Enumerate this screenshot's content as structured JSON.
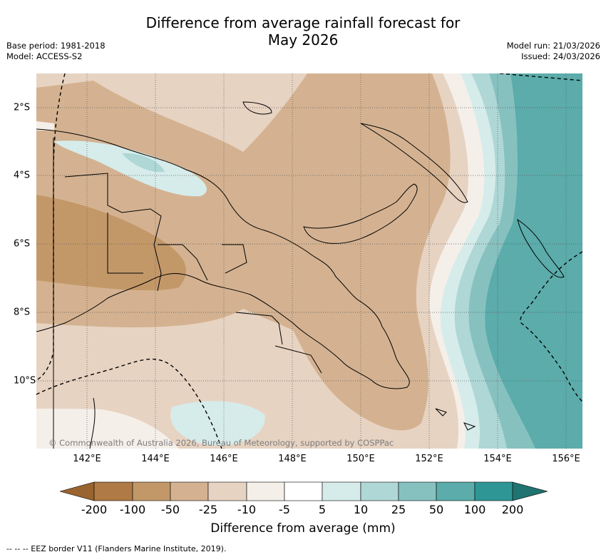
{
  "title": {
    "line1": "Difference from average rainfall forecast for",
    "line2": "May 2026"
  },
  "meta": {
    "base_period": "Base period: 1981-2018",
    "model": "Model: ACCESS-S2",
    "model_run": "Model run: 21/03/2026",
    "issued": "Issued: 24/03/2026"
  },
  "map": {
    "region": "Papua New Guinea",
    "x_ticks": [
      "142°E",
      "144°E",
      "146°E",
      "148°E",
      "150°E",
      "152°E",
      "154°E",
      "156°E"
    ],
    "y_ticks": [
      "2°S",
      "4°S",
      "6°S",
      "8°S",
      "10°S"
    ],
    "copyright": "© Commonwealth of Australia 2026, Bureau of Meteorology, supported by COSPPac"
  },
  "colorbar": {
    "label": "Difference from average (mm)",
    "ticks": [
      "-200",
      "-100",
      "-50",
      "-25",
      "-10",
      "-5",
      "5",
      "10",
      "25",
      "50",
      "100",
      "200"
    ],
    "colors": {
      "below_-200": "#9a6430",
      "-200_-100": "#af7a45",
      "-100_-50": "#c39869",
      "-50_-25": "#d4b291",
      "-25_-10": "#e7d3c2",
      "-10_-5": "#f4efe9",
      "-5_5": "#ffffff",
      "5_10": "#d6eceb",
      "10_25": "#aed7d6",
      "25_50": "#86c1c0",
      "50_100": "#5bacab",
      "100_200": "#2e9795",
      "above_200": "#1f7371"
    }
  },
  "footer": {
    "legend": "--  --  -- EEZ border V11 (Flanders Marine Institute, 2019)."
  }
}
